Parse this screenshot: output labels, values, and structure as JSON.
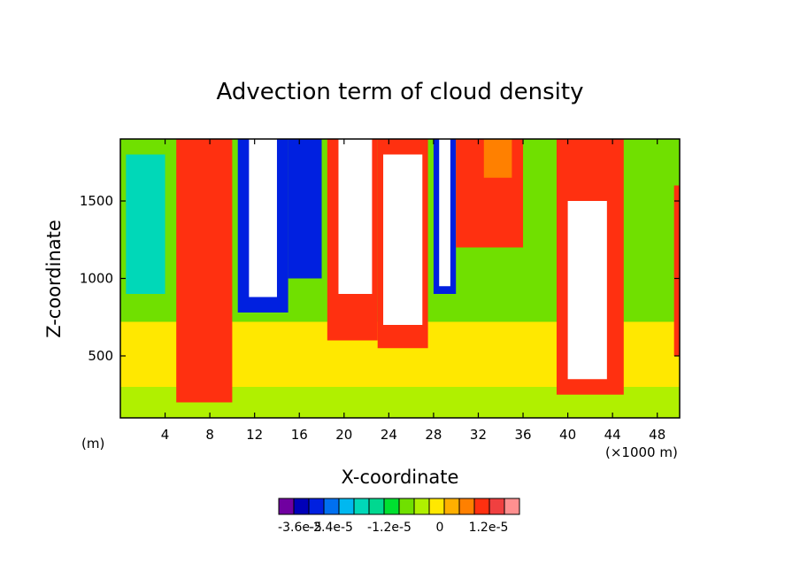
{
  "chart_data": {
    "type": "heatmap",
    "title": "Advection term of cloud density",
    "xlabel": "X-coordinate",
    "ylabel": "Z-coordinate",
    "x_unit_left": "(m)",
    "x_unit_right": "(×1000 m)",
    "xlim": [
      0,
      50
    ],
    "ylim": [
      100,
      1900
    ],
    "x_ticks": [
      4,
      8,
      12,
      16,
      20,
      24,
      28,
      32,
      36,
      40,
      44,
      48
    ],
    "x_tick_labels": [
      "4",
      "8",
      "12",
      "16",
      "20",
      "24",
      "28",
      "32",
      "36",
      "40",
      "44",
      "48"
    ],
    "y_ticks": [
      500,
      1000,
      1500
    ],
    "y_tick_labels": [
      "500",
      "1000",
      "1500"
    ],
    "colorbar": {
      "colors": [
        "#7000a0",
        "#0000b8",
        "#0020e0",
        "#0070f0",
        "#00b8f0",
        "#00d8b8",
        "#00d890",
        "#00e030",
        "#70e000",
        "#b0f000",
        "#ffe800",
        "#ffb000",
        "#ff8000",
        "#ff3010",
        "#f04040",
        "#ff9090"
      ],
      "labels": [
        "-3.6e-5",
        "-2.4e-5",
        "-1.2e-5",
        "0",
        "1.2e-5"
      ]
    },
    "regions": [
      {
        "x": [
          0,
          50
        ],
        "z": [
          100,
          1900
        ],
        "band": "yellow-green"
      },
      {
        "x": [
          0,
          50
        ],
        "z": [
          300,
          720
        ],
        "band": "yellow"
      },
      {
        "x": [
          0,
          50
        ],
        "z": [
          720,
          1900
        ],
        "band": "green"
      },
      {
        "x": [
          0.5,
          4
        ],
        "z": [
          900,
          1800
        ],
        "band": "cyan"
      },
      {
        "x": [
          5,
          10
        ],
        "z": [
          200,
          1900
        ],
        "band": "red"
      },
      {
        "x": [
          10.5,
          15
        ],
        "z": [
          780,
          1900
        ],
        "band": "blue"
      },
      {
        "x": [
          11.5,
          14
        ],
        "z": [
          880,
          1900
        ],
        "band": "white"
      },
      {
        "x": [
          15,
          18
        ],
        "z": [
          1000,
          1900
        ],
        "band": "blue"
      },
      {
        "x": [
          18.5,
          23
        ],
        "z": [
          600,
          1900
        ],
        "band": "red"
      },
      {
        "x": [
          19.5,
          22.5
        ],
        "z": [
          900,
          1900
        ],
        "band": "white"
      },
      {
        "x": [
          23,
          27.5
        ],
        "z": [
          550,
          1900
        ],
        "band": "red"
      },
      {
        "x": [
          23.5,
          27
        ],
        "z": [
          700,
          1800
        ],
        "band": "white"
      },
      {
        "x": [
          28,
          30
        ],
        "z": [
          900,
          1900
        ],
        "band": "blue"
      },
      {
        "x": [
          28.5,
          29.5
        ],
        "z": [
          950,
          1900
        ],
        "band": "white"
      },
      {
        "x": [
          30,
          36
        ],
        "z": [
          1200,
          1900
        ],
        "band": "red"
      },
      {
        "x": [
          32.5,
          35
        ],
        "z": [
          1650,
          1900
        ],
        "band": "orange"
      },
      {
        "x": [
          39,
          45
        ],
        "z": [
          250,
          1900
        ],
        "band": "red"
      },
      {
        "x": [
          40,
          43.5
        ],
        "z": [
          350,
          1500
        ],
        "band": "white"
      },
      {
        "x": [
          49.5,
          50
        ],
        "z": [
          500,
          1600
        ],
        "band": "red"
      }
    ]
  }
}
